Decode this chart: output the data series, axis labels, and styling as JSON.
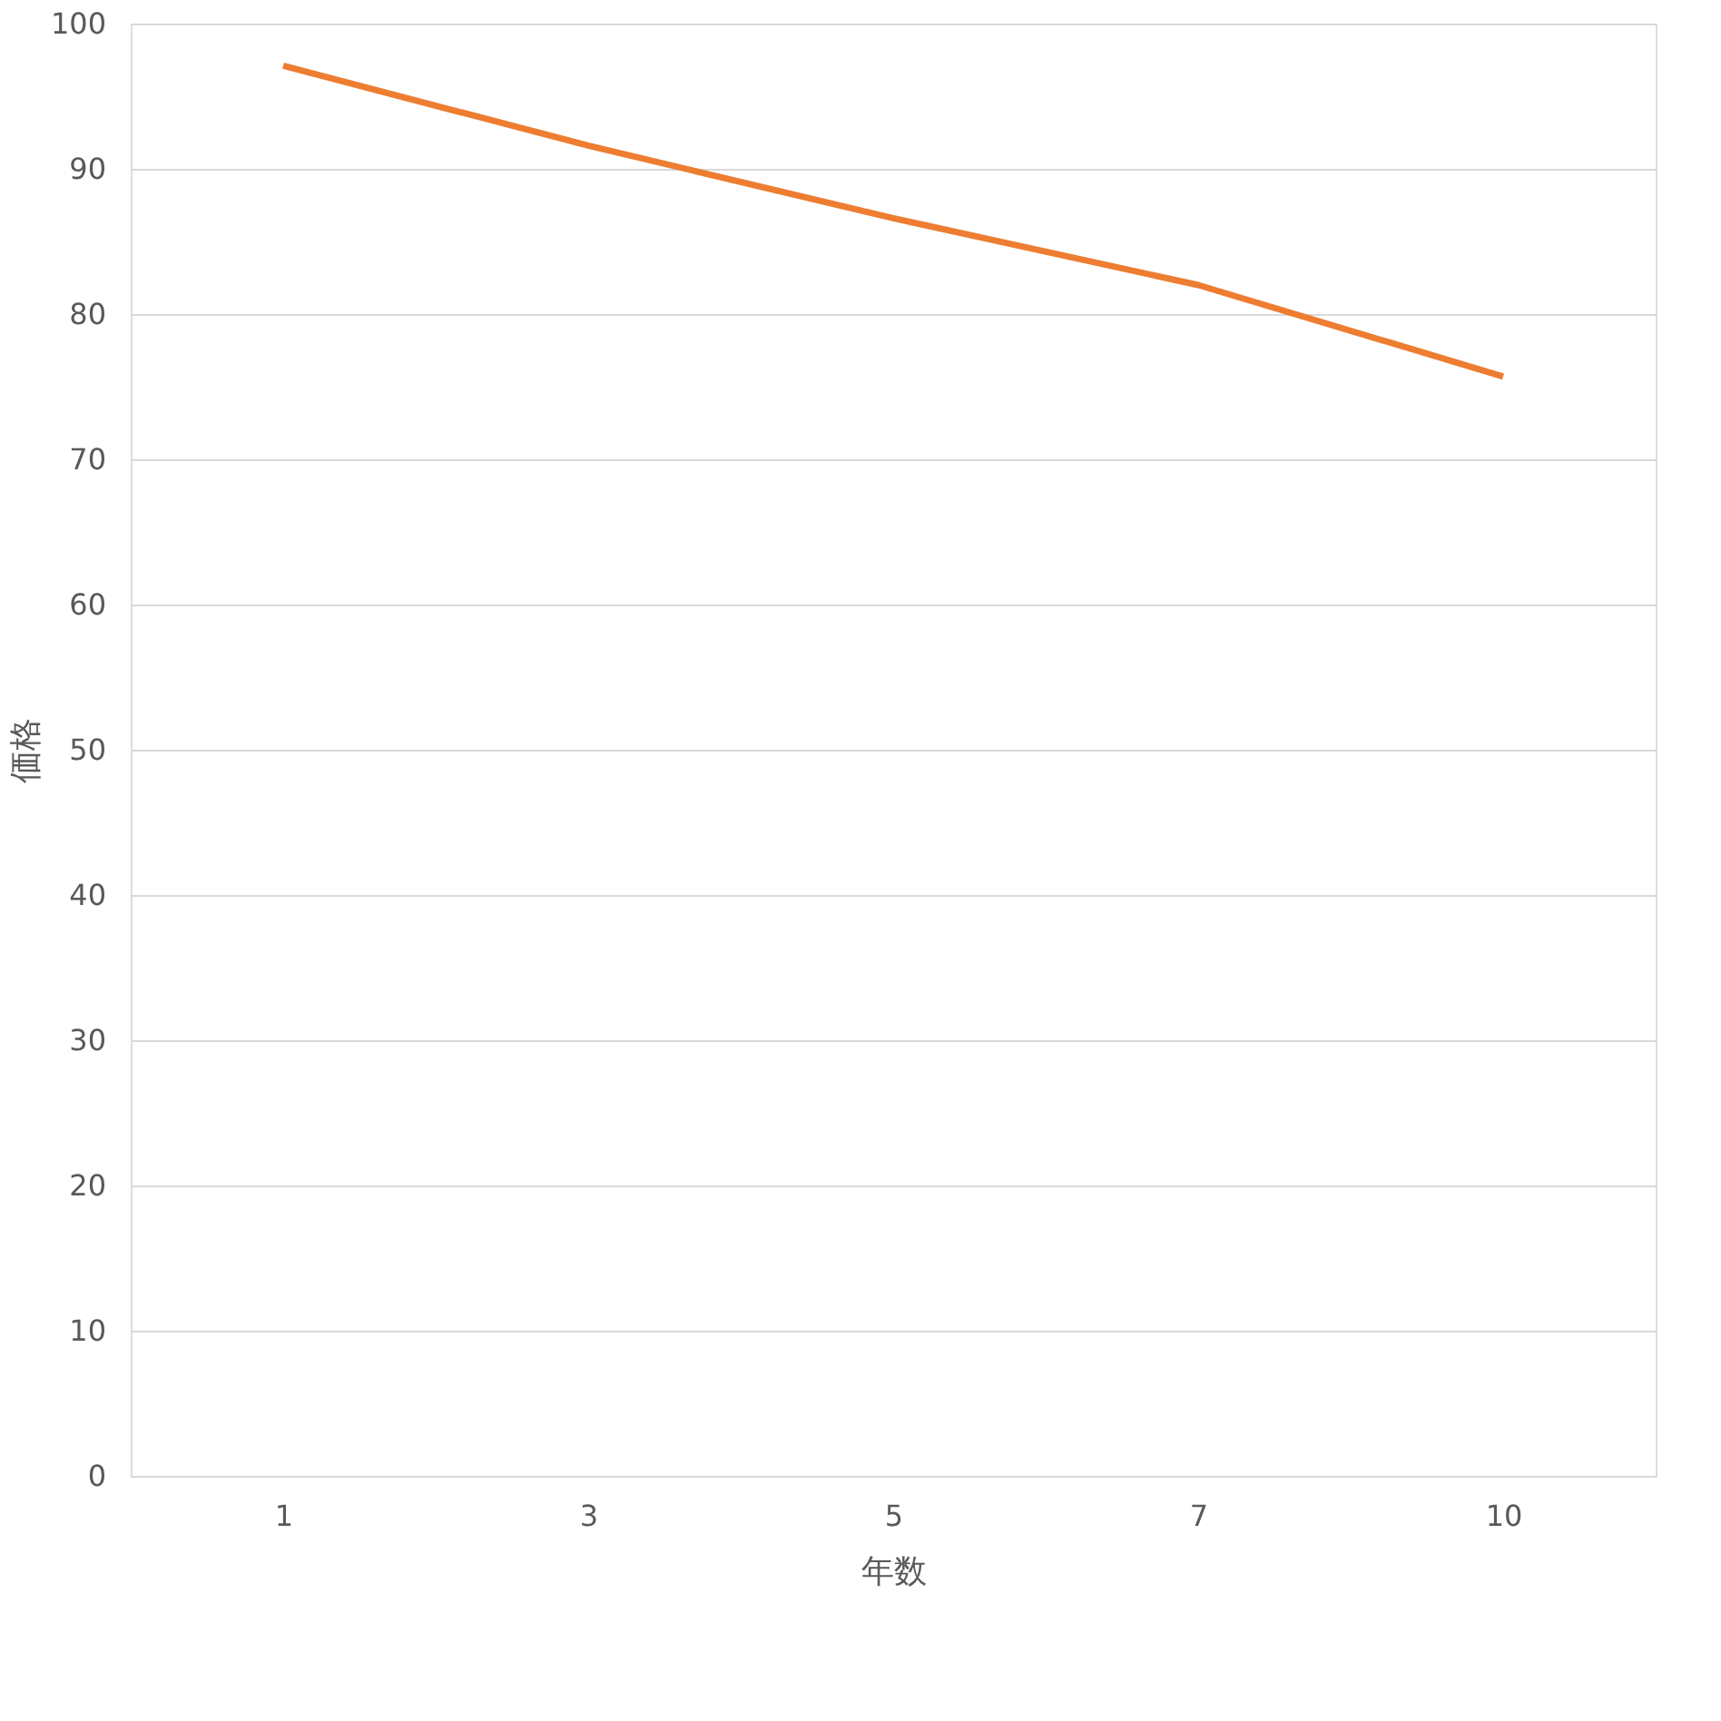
{
  "chart_data": {
    "type": "line",
    "xlabel": "年数",
    "ylabel": "価格",
    "categories": [
      "1",
      "3",
      "5",
      "7",
      "10"
    ],
    "series": [
      {
        "color": "#ed7d31",
        "values": [
          97.1,
          91.6,
          86.6,
          82.0,
          75.7
        ]
      }
    ],
    "ylim": [
      0,
      100
    ],
    "yticks": [
      0,
      10,
      20,
      30,
      40,
      50,
      60,
      70,
      80,
      90,
      100
    ],
    "grid": "y",
    "legend": false,
    "marker": "none",
    "line_style": "solid"
  }
}
